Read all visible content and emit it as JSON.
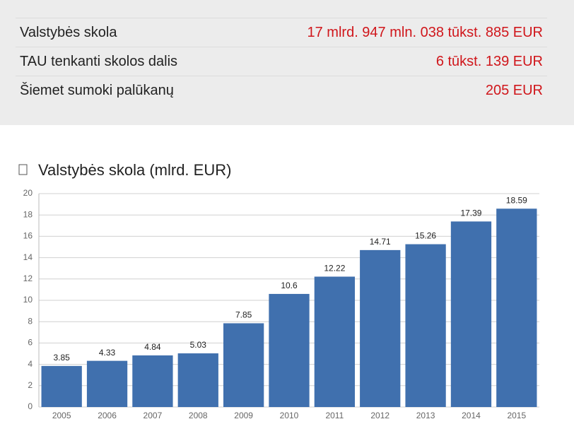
{
  "summary": {
    "rows": [
      {
        "label": "Valstybės skola",
        "value": "17 mlrd. 947 mln. 038 tūkst. 885 EUR"
      },
      {
        "label": "TAU tenkanti skolos dalis",
        "value": "6 tūkst. 139 EUR"
      },
      {
        "label": "Šiemet sumoki palūkanų",
        "value": "205 EUR"
      }
    ]
  },
  "chart_data": {
    "type": "bar",
    "title": "Valstybės skola (mlrd. EUR)",
    "categories": [
      "2005",
      "2006",
      "2007",
      "2008",
      "2009",
      "2010",
      "2011",
      "2012",
      "2013",
      "2014",
      "2015"
    ],
    "values": [
      3.85,
      4.33,
      4.84,
      5.03,
      7.85,
      10.6,
      12.22,
      14.71,
      15.26,
      17.39,
      18.59
    ],
    "color": "#4070ae",
    "ylim": [
      0,
      20
    ],
    "yticks": [
      0,
      2,
      4,
      6,
      8,
      10,
      12,
      14,
      16,
      18,
      20
    ],
    "grid": true
  }
}
